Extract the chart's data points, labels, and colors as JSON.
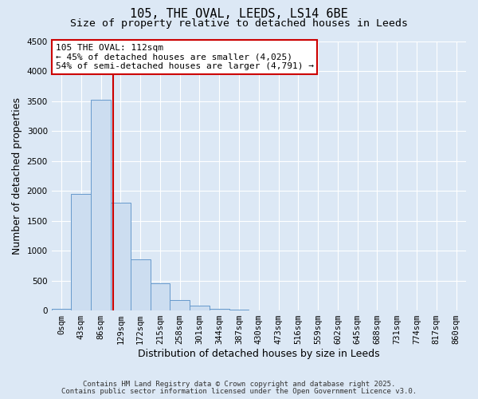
{
  "title": "105, THE OVAL, LEEDS, LS14 6BE",
  "subtitle": "Size of property relative to detached houses in Leeds",
  "bar_labels": [
    "0sqm",
    "43sqm",
    "86sqm",
    "129sqm",
    "172sqm",
    "215sqm",
    "258sqm",
    "301sqm",
    "344sqm",
    "387sqm",
    "430sqm",
    "473sqm",
    "516sqm",
    "559sqm",
    "602sqm",
    "645sqm",
    "688sqm",
    "731sqm",
    "774sqm",
    "817sqm",
    "860sqm"
  ],
  "bar_values": [
    30,
    1950,
    3520,
    1800,
    860,
    450,
    175,
    85,
    30,
    15,
    5,
    0,
    0,
    0,
    0,
    0,
    0,
    0,
    0,
    0,
    0
  ],
  "bar_color": "#ccddf0",
  "bar_edge_color": "#6699cc",
  "ylim": [
    0,
    4500
  ],
  "yticks": [
    0,
    500,
    1000,
    1500,
    2000,
    2500,
    3000,
    3500,
    4000,
    4500
  ],
  "xlabel": "Distribution of detached houses by size in Leeds",
  "ylabel": "Number of detached properties",
  "vline_x": 2.62,
  "vline_color": "#cc0000",
  "annotation_title": "105 THE OVAL: 112sqm",
  "annotation_line1": "← 45% of detached houses are smaller (4,025)",
  "annotation_line2": "54% of semi-detached houses are larger (4,791) →",
  "annotation_box_color": "#cc0000",
  "footnote1": "Contains HM Land Registry data © Crown copyright and database right 2025.",
  "footnote2": "Contains public sector information licensed under the Open Government Licence v3.0.",
  "bg_color": "#dce8f5",
  "grid_color": "#ffffff",
  "title_fontsize": 11,
  "subtitle_fontsize": 9.5,
  "axis_label_fontsize": 9,
  "tick_fontsize": 7.5,
  "footnote_fontsize": 6.5
}
